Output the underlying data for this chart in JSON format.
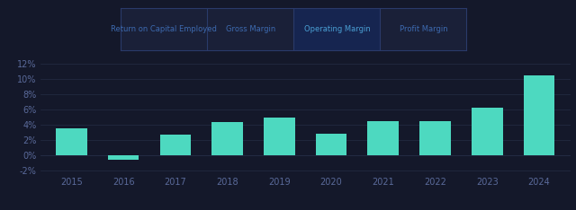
{
  "years": [
    2015,
    2016,
    2017,
    2018,
    2019,
    2020,
    2021,
    2022,
    2023,
    2024
  ],
  "values": [
    3.5,
    -0.6,
    2.7,
    4.4,
    5.0,
    2.8,
    4.5,
    4.5,
    6.3,
    10.5
  ],
  "bar_color": "#4dd9c0",
  "background_color": "#14182a",
  "axes_bg_color": "#14182a",
  "grid_color": "#252d45",
  "tick_color": "#5a6a9a",
  "legend_labels": [
    "Return on Capital Employed",
    "Gross Margin",
    "Operating Margin",
    "Profit Margin"
  ],
  "legend_active": "Operating Margin",
  "ylim": [
    -2.5,
    13.5
  ],
  "yticks": [
    -2,
    0,
    2,
    4,
    6,
    8,
    10,
    12
  ],
  "ytick_labels": [
    "-2%",
    "0%",
    "2%",
    "4%",
    "6%",
    "8%",
    "10%",
    "12%"
  ],
  "legend_box_color": "#1a2038",
  "legend_border_color": "#2a3a6a",
  "legend_active_bg": "#162550",
  "legend_text_color": "#3d6ab0",
  "legend_active_text_color": "#4a9fd4"
}
